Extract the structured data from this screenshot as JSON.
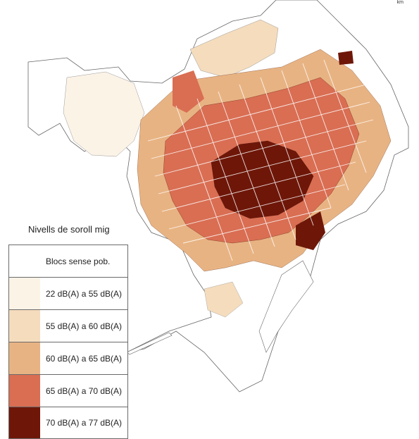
{
  "map": {
    "scale_unit": "km",
    "legend": {
      "title": "Nivells de soroll mig",
      "items": [
        {
          "label": "Blocs sense pob.",
          "color": "#ffffff"
        },
        {
          "label": "22 dB(A) a 55 dB(A)",
          "color": "#fcf3e7"
        },
        {
          "label": "55 dB(A) a 60 dB(A)",
          "color": "#f5dcbc"
        },
        {
          "label": "60 dB(A) a 65 dB(A)",
          "color": "#e8b383"
        },
        {
          "label": "65 dB(A) a 70 dB(A)",
          "color": "#d96e53"
        },
        {
          "label": "70 dB(A) a 77 dB(A)",
          "color": "#6e1709"
        }
      ]
    }
  }
}
